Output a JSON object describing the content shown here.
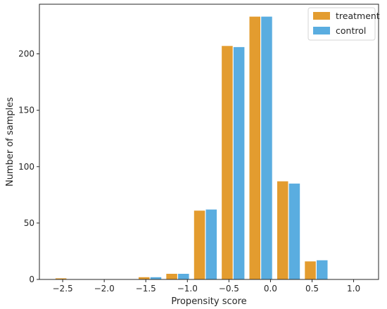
{
  "chart_data": {
    "type": "bar",
    "xlabel": "Propensity score",
    "ylabel": "Number of samples",
    "xlim": [
      -2.78,
      1.3
    ],
    "ylim": [
      0,
      244
    ],
    "grid": false,
    "legend_position": "top-right",
    "bin_width": 0.333,
    "bin_centers": [
      -2.45,
      -2.117,
      -1.783,
      -1.45,
      -1.117,
      -0.783,
      -0.45,
      -0.117,
      0.217,
      0.55,
      0.883
    ],
    "x_ticks": [
      {
        "value": -2.5,
        "label": "−2.5"
      },
      {
        "value": -2.0,
        "label": "−2.0"
      },
      {
        "value": -1.5,
        "label": "−1.5"
      },
      {
        "value": -1.0,
        "label": "−1.0"
      },
      {
        "value": -0.5,
        "label": "−0.5"
      },
      {
        "value": 0.0,
        "label": "0.0"
      },
      {
        "value": 0.5,
        "label": "0.5"
      },
      {
        "value": 1.0,
        "label": "1.0"
      }
    ],
    "y_ticks": [
      {
        "value": 0,
        "label": "0"
      },
      {
        "value": 50,
        "label": "50"
      },
      {
        "value": 100,
        "label": "100"
      },
      {
        "value": 150,
        "label": "150"
      },
      {
        "value": 200,
        "label": "200"
      }
    ],
    "series": [
      {
        "name": "treatment",
        "color": "#e39c2f",
        "values": [
          1,
          0,
          0,
          2,
          5,
          61,
          207,
          233,
          87,
          16,
          0
        ]
      },
      {
        "name": "control",
        "color": "#5aade0",
        "values": [
          0,
          0,
          0,
          2,
          5,
          62,
          206,
          233,
          85,
          17,
          0
        ]
      }
    ]
  }
}
